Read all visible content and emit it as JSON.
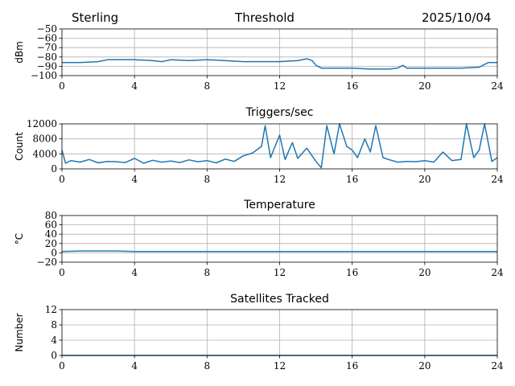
{
  "header": {
    "station": "Sterling",
    "title": "Threshold",
    "date": "2025/10/04"
  },
  "colors": {
    "line": "#1f77b4",
    "grid": "#b0b0b0",
    "axis": "#000000"
  },
  "chart_data": [
    {
      "type": "line",
      "title": "Threshold",
      "xlabel": "",
      "ylabel": "dBm",
      "xlim": [
        0,
        24
      ],
      "ylim": [
        -100,
        -50
      ],
      "xticks": [
        0,
        4,
        8,
        12,
        16,
        20,
        24
      ],
      "xtick_labels": [
        "0",
        "4",
        "8",
        "12",
        "16",
        "20",
        "24"
      ],
      "yticks": [
        -50,
        -60,
        -70,
        -80,
        -90,
        -100
      ],
      "ytick_labels": [
        "−50",
        "−60",
        "−70",
        "−80",
        "−90",
        "−100"
      ],
      "grid": true,
      "series": [
        {
          "name": "Threshold",
          "x": [
            0,
            1,
            2,
            2.5,
            3,
            4,
            5,
            5.5,
            6,
            7,
            8,
            9,
            10,
            11,
            12,
            13,
            13.5,
            13.8,
            14,
            14.3,
            15,
            16,
            17,
            18,
            18.5,
            18.8,
            19,
            20,
            21,
            22,
            23,
            23.5,
            24
          ],
          "y": [
            -86,
            -86,
            -85,
            -83,
            -83,
            -83,
            -84,
            -85,
            -83,
            -84,
            -83,
            -84,
            -85,
            -85,
            -85,
            -84,
            -82,
            -84,
            -89,
            -92,
            -92,
            -92,
            -93,
            -93,
            -92,
            -89,
            -92,
            -92,
            -92,
            -92,
            -91,
            -86,
            -86
          ]
        }
      ]
    },
    {
      "type": "line",
      "title": "Triggers/sec",
      "xlabel": "",
      "ylabel": "Count",
      "xlim": [
        0,
        24
      ],
      "ylim": [
        0,
        12000
      ],
      "xticks": [
        0,
        4,
        8,
        12,
        16,
        20,
        24
      ],
      "xtick_labels": [
        "0",
        "4",
        "8",
        "12",
        "16",
        "20",
        "24"
      ],
      "yticks": [
        0,
        4000,
        8000,
        12000
      ],
      "ytick_labels": [
        "0",
        "4000",
        "8000",
        "12000"
      ],
      "grid": true,
      "series": [
        {
          "name": "Triggers/sec",
          "x": [
            0,
            0.2,
            0.5,
            1,
            1.5,
            2,
            2.5,
            3,
            3.5,
            4,
            4.5,
            5,
            5.5,
            6,
            6.5,
            7,
            7.5,
            8,
            8.5,
            9,
            9.5,
            10,
            10.5,
            11,
            11.2,
            11.5,
            12,
            12.3,
            12.7,
            13,
            13.5,
            14,
            14.3,
            14.6,
            15,
            15.3,
            15.7,
            16,
            16.3,
            16.7,
            17,
            17.3,
            17.7,
            18,
            18.5,
            19,
            19.5,
            20,
            20.5,
            21,
            21.5,
            22,
            22.3,
            22.7,
            23,
            23.3,
            23.7,
            24
          ],
          "y": [
            5000,
            1500,
            2200,
            1800,
            2500,
            1600,
            2000,
            1900,
            1700,
            2800,
            1500,
            2300,
            1800,
            2100,
            1700,
            2400,
            1900,
            2200,
            1600,
            2600,
            2000,
            3500,
            4200,
            6000,
            11500,
            3000,
            9000,
            2500,
            7000,
            2800,
            5500,
            2000,
            300,
            11500,
            4000,
            12000,
            6000,
            5000,
            3000,
            8000,
            4500,
            11500,
            3000,
            2500,
            1800,
            2000,
            1900,
            2200,
            1800,
            4500,
            2200,
            2500,
            12000,
            3000,
            5000,
            12000,
            2000,
            3000
          ]
        }
      ]
    },
    {
      "type": "line",
      "title": "Temperature",
      "xlabel": "",
      "ylabel": "°C",
      "xlim": [
        0,
        24
      ],
      "ylim": [
        -20,
        80
      ],
      "xticks": [
        0,
        4,
        8,
        12,
        16,
        20,
        24
      ],
      "xtick_labels": [
        "0",
        "4",
        "8",
        "12",
        "16",
        "20",
        "24"
      ],
      "yticks": [
        -20,
        0,
        20,
        40,
        60,
        80
      ],
      "ytick_labels": [
        "−20",
        "0",
        "20",
        "40",
        "60",
        "80"
      ],
      "grid": true,
      "series": [
        {
          "name": "Temperature",
          "x": [
            0,
            1,
            2,
            3,
            4,
            6,
            8,
            10,
            12,
            14,
            16,
            18,
            20,
            22,
            24
          ],
          "y": [
            3,
            4,
            4,
            4,
            3,
            3,
            3,
            3,
            3,
            3,
            3,
            3,
            3,
            3,
            3
          ]
        }
      ]
    },
    {
      "type": "line",
      "title": "Satellites Tracked",
      "xlabel": "",
      "ylabel": "Number",
      "xlim": [
        0,
        24
      ],
      "ylim": [
        0,
        12
      ],
      "xticks": [
        0,
        4,
        8,
        12,
        16,
        20,
        24
      ],
      "xtick_labels": [
        "0",
        "4",
        "8",
        "12",
        "16",
        "20",
        "24"
      ],
      "yticks": [
        0,
        4,
        8,
        12
      ],
      "ytick_labels": [
        "0",
        "4",
        "8",
        "12"
      ],
      "grid": true,
      "series": [
        {
          "name": "Satellites Tracked",
          "x": [
            0,
            24
          ],
          "y": [
            0,
            0
          ]
        }
      ]
    }
  ]
}
